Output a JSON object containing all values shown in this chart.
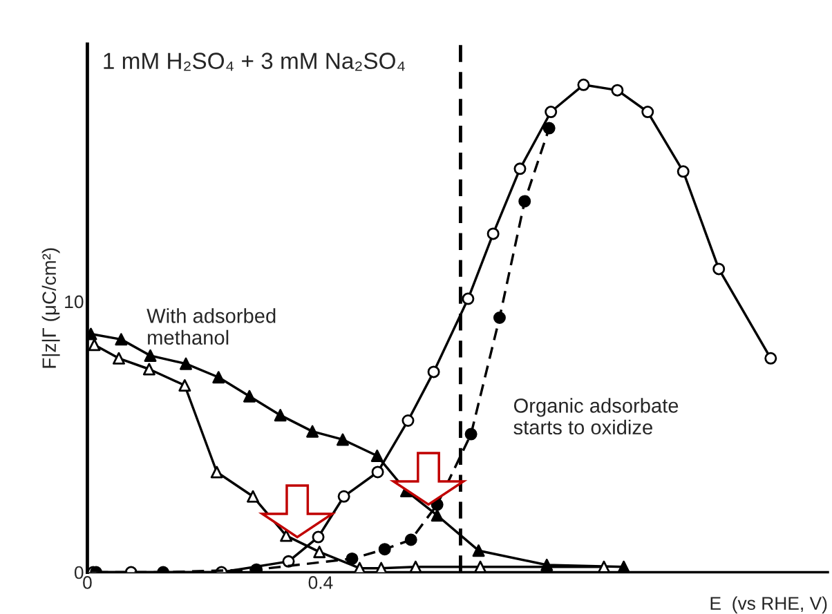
{
  "chart_data": {
    "type": "line",
    "title": "1 mM H₂SO₄ + 3 mM Na₂SO₄",
    "xlabel": "E  (vs RHE, V)",
    "ylabel": "F|z|Γ (μC/cm²)",
    "annotations": [
      "With adsorbed\nmethanol",
      "Organic adsorbate\nstarts to oxidize"
    ],
    "series": [
      {
        "color": "#000000",
        "marker": "circle",
        "colors": [
          "#ffffff",
          "#ffffff",
          "#ffffff",
          "#ffffff",
          "#ffffff",
          "#ffffff",
          "#ffffff",
          "#ffffff",
          "#ffffff",
          "#ffffff",
          "#ffffff",
          "#ffffff",
          "#ffffff",
          "#ffffff",
          "#ffffff",
          "#ffffff",
          "#ffffff",
          "#ffffff",
          "#ffffff"
        ],
        "line_style": "solid",
        "x": [
          0.01,
          0.075,
          0.23,
          0.345,
          0.396,
          0.44,
          0.498,
          0.55,
          0.594,
          0.653,
          0.696,
          0.742,
          0.795,
          0.851,
          0.909,
          0.961,
          1.022,
          1.083,
          1.172
        ],
        "values": [
          0,
          0,
          0,
          0.4,
          1.3,
          2.8,
          3.7,
          5.6,
          7.4,
          10.1,
          12.5,
          14.9,
          17.0,
          18.0,
          17.8,
          17.0,
          14.8,
          11.2,
          7.9
        ]
      },
      {
        "color": "#000000",
        "marker": "circle",
        "line_style": "dashed",
        "x": [
          0.015,
          0.13,
          0.29,
          0.454,
          0.51,
          0.555,
          0.6,
          0.658,
          0.707,
          0.75,
          0.792
        ],
        "values": [
          0,
          0,
          0.1,
          0.5,
          0.85,
          1.2,
          2.5,
          5.1,
          9.4,
          13.7,
          16.4
        ]
      },
      {
        "color": "#000000",
        "marker": "triangle",
        "line_style": "solid",
        "x": [
          0.006,
          0.058,
          0.108,
          0.169,
          0.225,
          0.278,
          0.331,
          0.386,
          0.438,
          0.497,
          0.547,
          0.6,
          0.671,
          0.788,
          0.92
        ],
        "values": [
          8.8,
          8.6,
          8.0,
          7.7,
          7.2,
          6.5,
          5.8,
          5.2,
          4.9,
          4.3,
          3.0,
          2.1,
          0.8,
          0.27,
          0.2
        ]
      },
      {
        "color": "#000000",
        "marker": "triangle",
        "colors": [
          "#ffffff",
          "#ffffff",
          "#ffffff",
          "#ffffff",
          "#ffffff",
          "#ffffff",
          "#ffffff",
          "#ffffff",
          "#ffffff",
          "#ffffff",
          "#ffffff",
          "#ffffff",
          "#ffffff"
        ],
        "line_style": "solid",
        "x": [
          0.012,
          0.054,
          0.106,
          0.167,
          0.222,
          0.284,
          0.341,
          0.398,
          0.467,
          0.504,
          0.563,
          0.674,
          0.886
        ],
        "values": [
          8.4,
          7.9,
          7.5,
          6.9,
          3.7,
          2.8,
          1.35,
          0.75,
          0.15,
          0.15,
          0.2,
          0.2,
          0.2
        ]
      }
    ],
    "ref_lines": [
      {
        "axis": "x",
        "value": 0.64,
        "color": "#000000",
        "line_style": "dashed"
      }
    ],
    "xlim": [
      0,
      1.27
    ],
    "xticks": [
      0,
      0.4
    ],
    "ylim": [
      0,
      19.5
    ],
    "yticks": [
      0,
      10
    ],
    "grid": false,
    "legend": false
  }
}
